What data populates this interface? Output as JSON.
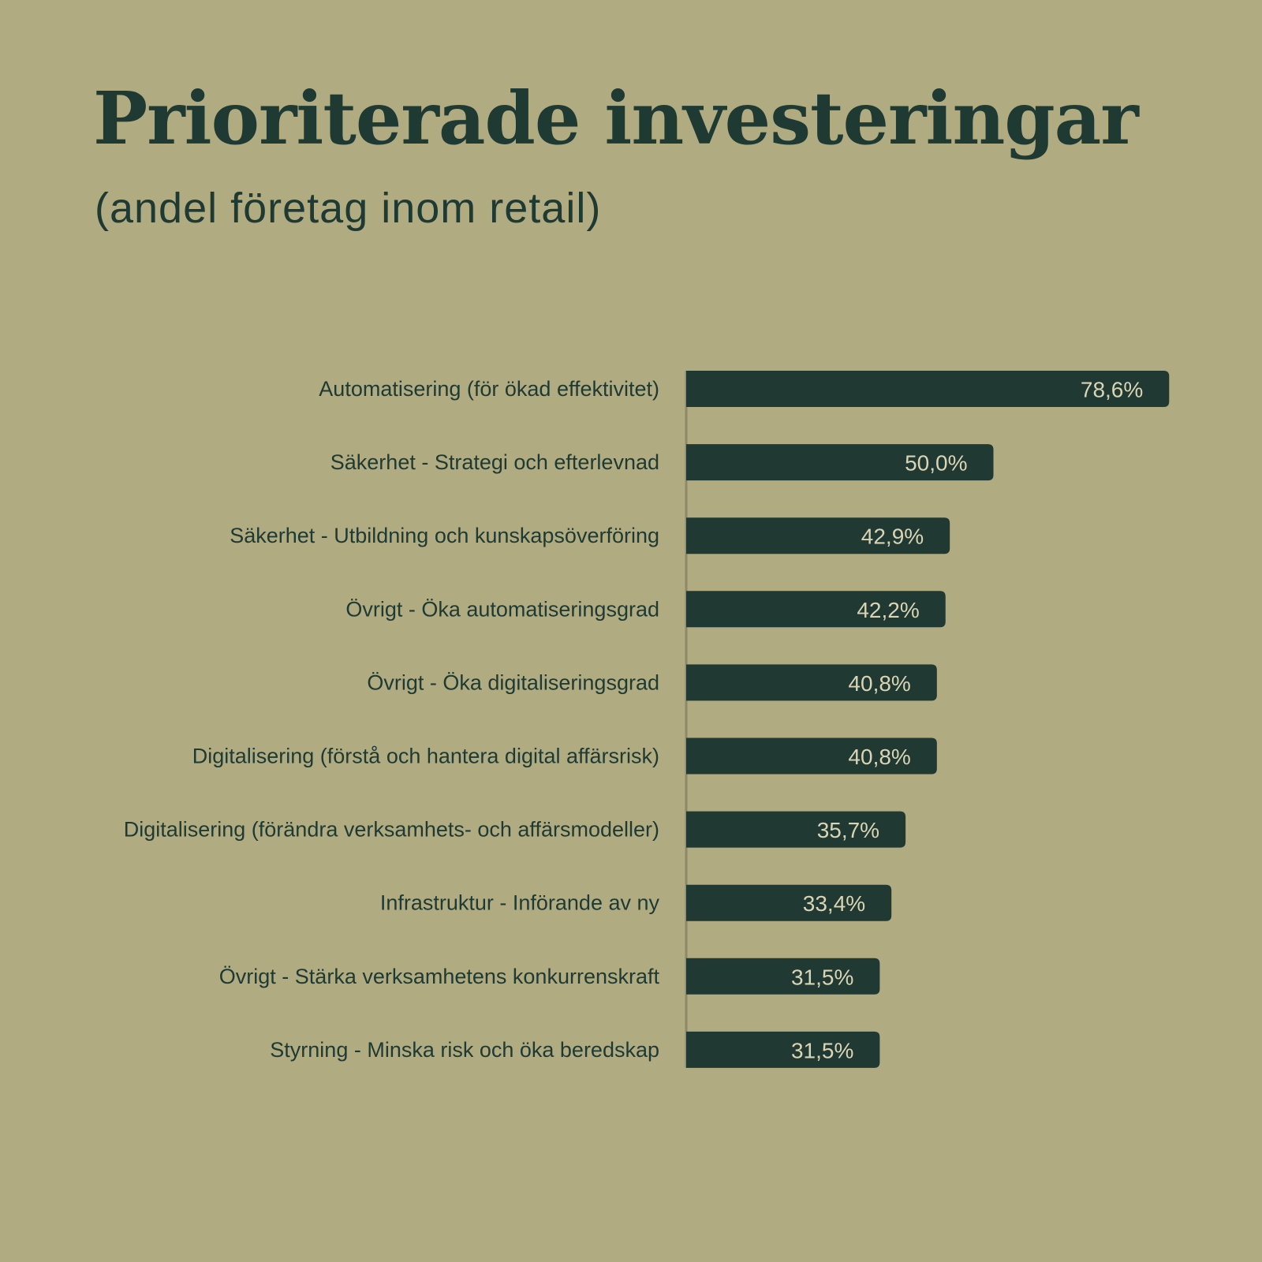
{
  "title": "Prioriterade investeringar",
  "subtitle": "(andel företag inom retail)",
  "colors": {
    "background": "#b0ab80",
    "bar": "#213933",
    "text": "#1e3a33",
    "value_text": "#d9d4b4",
    "axis": "#8e8a67"
  },
  "chart_data": {
    "type": "bar",
    "orientation": "horizontal",
    "title": "Prioriterade investeringar",
    "subtitle": "(andel företag inom retail)",
    "xlabel": "",
    "ylabel": "",
    "grid": false,
    "legend": "none",
    "xlim": [
      0,
      100
    ],
    "categories": [
      "Automatisering (för ökad effektivitet)",
      "Säkerhet - Strategi och efterlevnad",
      "Säkerhet - Utbildning och kunskapsöverföring",
      "Övrigt - Öka automatiseringsgrad",
      "Övrigt - Öka digitaliseringsgrad",
      "Digitalisering (förstå och hantera digital affärsrisk)",
      "Digitalisering (förändra verksamhets- och affärsmodeller)",
      "Infrastruktur - Införande av ny",
      "Övrigt - Stärka verksamhetens konkurrenskraft",
      "Styrning - Minska risk och öka beredskap"
    ],
    "values": [
      78.6,
      50.0,
      42.9,
      42.2,
      40.8,
      40.8,
      35.7,
      33.4,
      31.5,
      31.5
    ],
    "value_labels": [
      "78,6%",
      "50,0%",
      "42,9%",
      "42,2%",
      "40,8%",
      "40,8%",
      "35,7%",
      "33,4%",
      "31,5%",
      "31,5%"
    ]
  }
}
